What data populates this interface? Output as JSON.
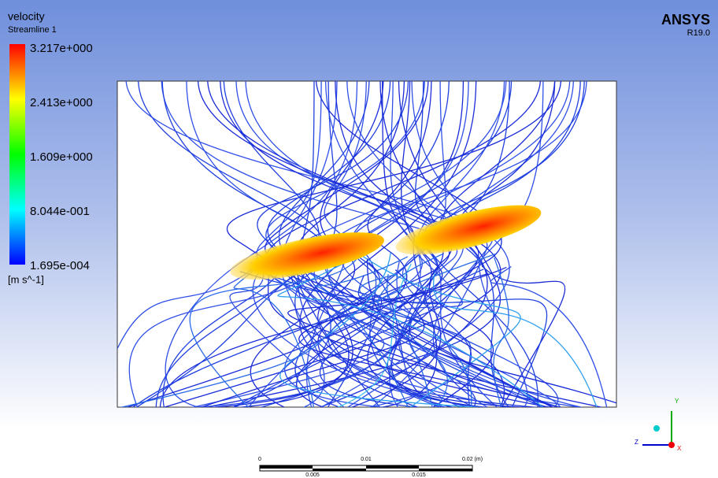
{
  "legend": {
    "variable": "velocity",
    "object": "Streamline 1",
    "labels": [
      "3.217e+000",
      "2.413e+000",
      "1.609e+000",
      "8.044e-001",
      "1.695e-004"
    ],
    "unit": "[m s^-1]"
  },
  "brand": {
    "name": "ANSYS",
    "version": "R19.0"
  },
  "scale_bar": {
    "top_labels": [
      "0",
      "0.01",
      "0.02 (m)"
    ],
    "bottom_labels": [
      "0.005",
      "0.015"
    ]
  },
  "triad": {
    "y": "Y",
    "z": "Z",
    "x": "X"
  }
}
